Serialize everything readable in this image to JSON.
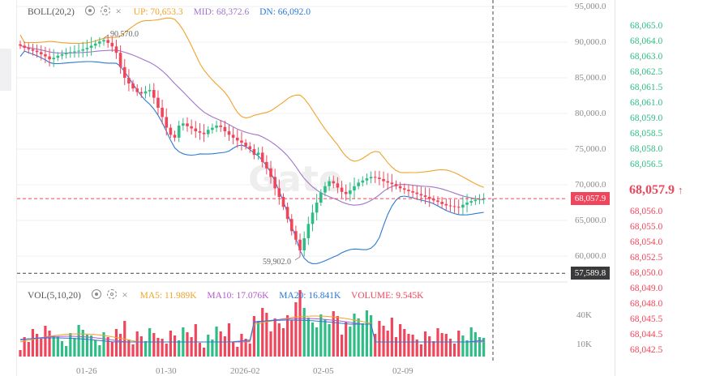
{
  "colors": {
    "up": "#2ebd85",
    "down": "#f0465b",
    "boll_up": "#f0a32a",
    "boll_mid": "#a275c9",
    "boll_dn": "#2a79d6",
    "ma5": "#f0a32a",
    "ma10": "#b05cc9",
    "ma20": "#2a79d6",
    "grid": "#efefef"
  },
  "boll": {
    "label": "BOLL(20,2)",
    "up": "UP: 70,653.3",
    "mid": "MID: 68,372.6",
    "dn": "DN: 66,092.0",
    "close_icon": "×"
  },
  "vol": {
    "label": "VOL(5,10,20)",
    "ma5": "MA5: 11.989K",
    "ma10": "MA10: 17.076K",
    "ma20": "MA20: 16.841K",
    "volume": "VOLUME: 9.545K"
  },
  "price_axis": [
    "95,000.0",
    "90,000.0",
    "85,000.0",
    "80,000.0",
    "75,000.0",
    "70,000.0",
    "65,000.0",
    "60,000.0"
  ],
  "price_tags": {
    "current": "68,057.9",
    "cursor": "57,589.8"
  },
  "vol_axis": [
    "40K",
    "10K"
  ],
  "time_axis": [
    "01-26",
    "01-30",
    "2026-02",
    "02-05",
    "02-09"
  ],
  "annotations": {
    "high": "90,570.0",
    "low": "59,902.0"
  },
  "watermark": "Gate",
  "depth": {
    "asks": [
      "68,065.0",
      "68,064.0",
      "68,063.0",
      "68,062.5",
      "68,061.5",
      "68,061.0",
      "68,059.0",
      "68,058.5",
      "68,058.0",
      "68,056.5"
    ],
    "mid_price": "68,057.9",
    "mid_arrow": "↑",
    "bids": [
      "68,056.0",
      "68,055.0",
      "68,054.0",
      "68,052.5",
      "68,050.0",
      "68,049.0",
      "68,048.0",
      "68,045.5",
      "68,044.5",
      "68,042.5"
    ]
  }
}
